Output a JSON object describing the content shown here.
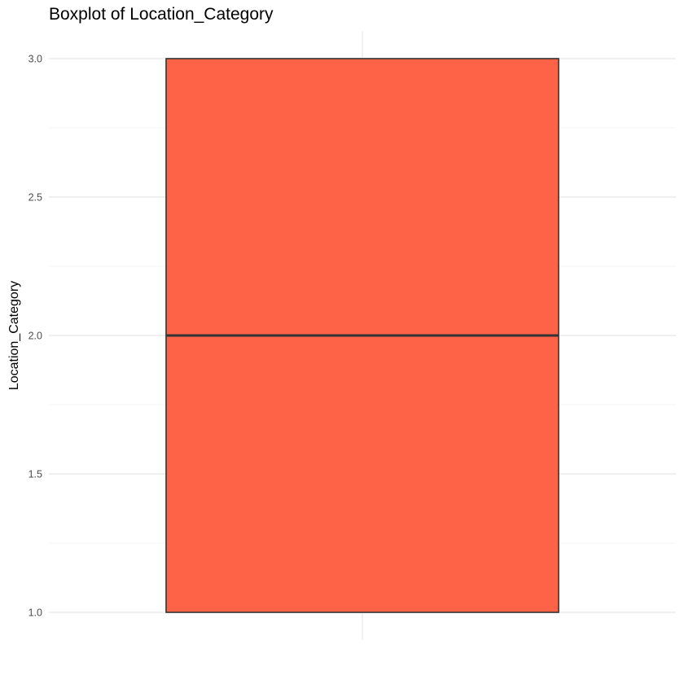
{
  "chart_data": {
    "type": "boxplot",
    "title": "Boxplot of Location_Category",
    "xlabel": "",
    "ylabel": "Location_Category",
    "ylim": [
      0.9,
      3.1
    ],
    "y_ticks": [
      1.0,
      1.5,
      2.0,
      2.5,
      3.0
    ],
    "y_tick_labels": [
      "1.0",
      "1.5",
      "2.0",
      "2.5",
      "3.0"
    ],
    "grid": true,
    "legend": "none",
    "box": {
      "min": 1.0,
      "q1": 1.0,
      "median": 2.0,
      "q3": 3.0,
      "max": 3.0
    },
    "colors": {
      "fill": "#ff6347",
      "outline": "#333333"
    }
  }
}
